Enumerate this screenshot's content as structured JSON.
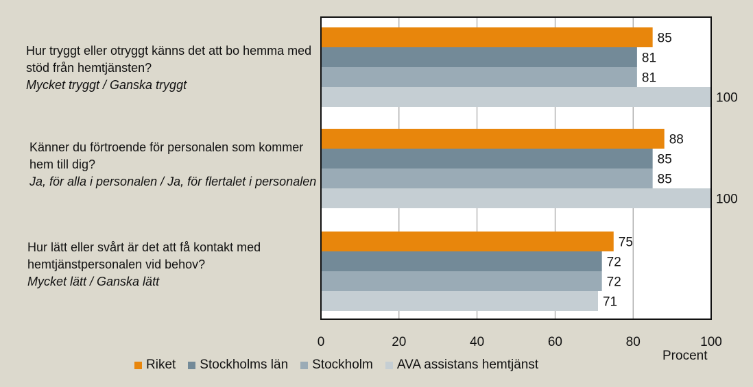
{
  "chart_data": {
    "type": "bar",
    "orientation": "horizontal",
    "unit_label": "Procent",
    "xlim": [
      0,
      100
    ],
    "xticks": [
      0,
      20,
      40,
      60,
      80,
      100
    ],
    "grid": true,
    "legend_position": "bottom",
    "categories": [
      {
        "question": "Hur tryggt eller otryggt känns det att bo hemma med stöd från hemtjänsten?",
        "answer": "Mycket tryggt / Ganska tryggt"
      },
      {
        "question": "Känner du förtroende för personalen som kommer hem till dig?",
        "answer": "Ja, för alla i personalen / Ja, för flertalet i personalen"
      },
      {
        "question": "Hur lätt eller svårt är det att få kontakt med hemtjänstpersonalen vid behov?",
        "answer": "Mycket lätt / Ganska lätt"
      }
    ],
    "series": [
      {
        "name": "Riket",
        "color": "#e8860c",
        "values": [
          85,
          88,
          75
        ]
      },
      {
        "name": "Stockholms län",
        "color": "#738a98",
        "values": [
          81,
          85,
          72
        ]
      },
      {
        "name": "Stockholm",
        "color": "#9aabb6",
        "values": [
          81,
          85,
          72
        ]
      },
      {
        "name": "AVA assistans hemtjänst",
        "color": "#c5ced3",
        "values": [
          100,
          100,
          71
        ]
      }
    ]
  }
}
